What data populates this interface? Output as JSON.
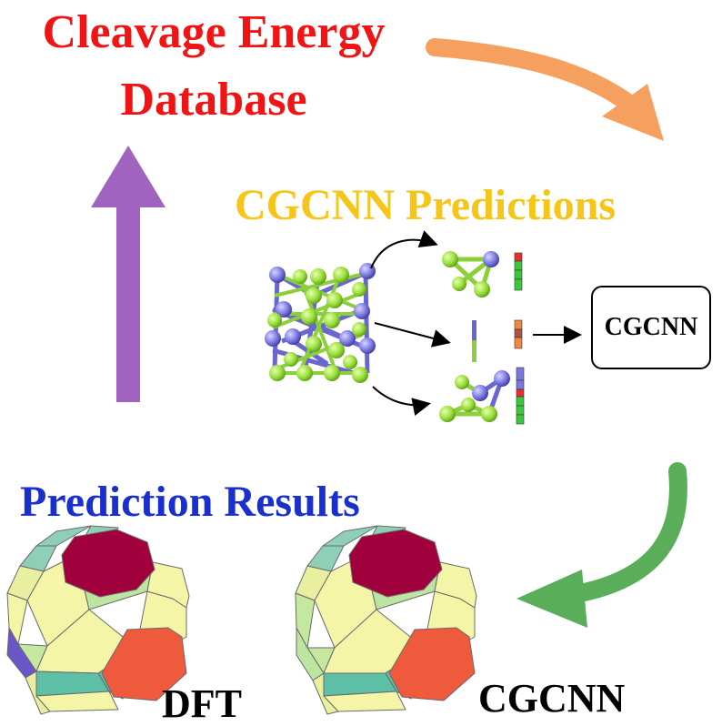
{
  "titles": {
    "database_line1": "Cleavage Energy",
    "database_line2": "Database",
    "predictions": "CGCNN Predictions",
    "results": "Prediction Results"
  },
  "model_box": {
    "label": "CGCNN"
  },
  "results": {
    "left_label": "DFT",
    "right_label": "CGCNN"
  },
  "colors": {
    "database_red": "#f01414",
    "predictions_yellow": "#f5c518",
    "results_blue": "#1a2fd0",
    "arrow_orange": "#f6a060",
    "arrow_green": "#5aae5a",
    "arrow_purple": "#a064c0",
    "atom_green": "#9adf3a",
    "atom_blue": "#7b78e0",
    "facet_crimson": "#a0003c",
    "facet_orange": "#ef5a3c",
    "facet_yellow": "#f5f5a8",
    "facet_teal": "#5cbfa6"
  }
}
